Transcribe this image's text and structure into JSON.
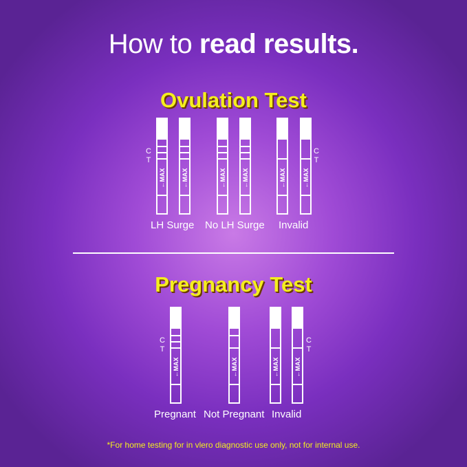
{
  "header": {
    "title_light": "How to",
    "title_bold": "read results."
  },
  "ovulation": {
    "title": "Ovulation Test",
    "labels": [
      "LH Surge",
      "No LH Surge",
      "Invalid"
    ],
    "control_label": "C",
    "test_label": "T",
    "arrow_text": "MAX"
  },
  "pregnancy": {
    "title": "Pregnancy Test",
    "labels": [
      "Pregnant",
      "Not Pregnant",
      "Invalid"
    ],
    "control_label": "C",
    "test_label": "T",
    "arrow_text": "MAX"
  },
  "footnote": "*For home testing for in vlero diagnostic use only, not for internal use."
}
